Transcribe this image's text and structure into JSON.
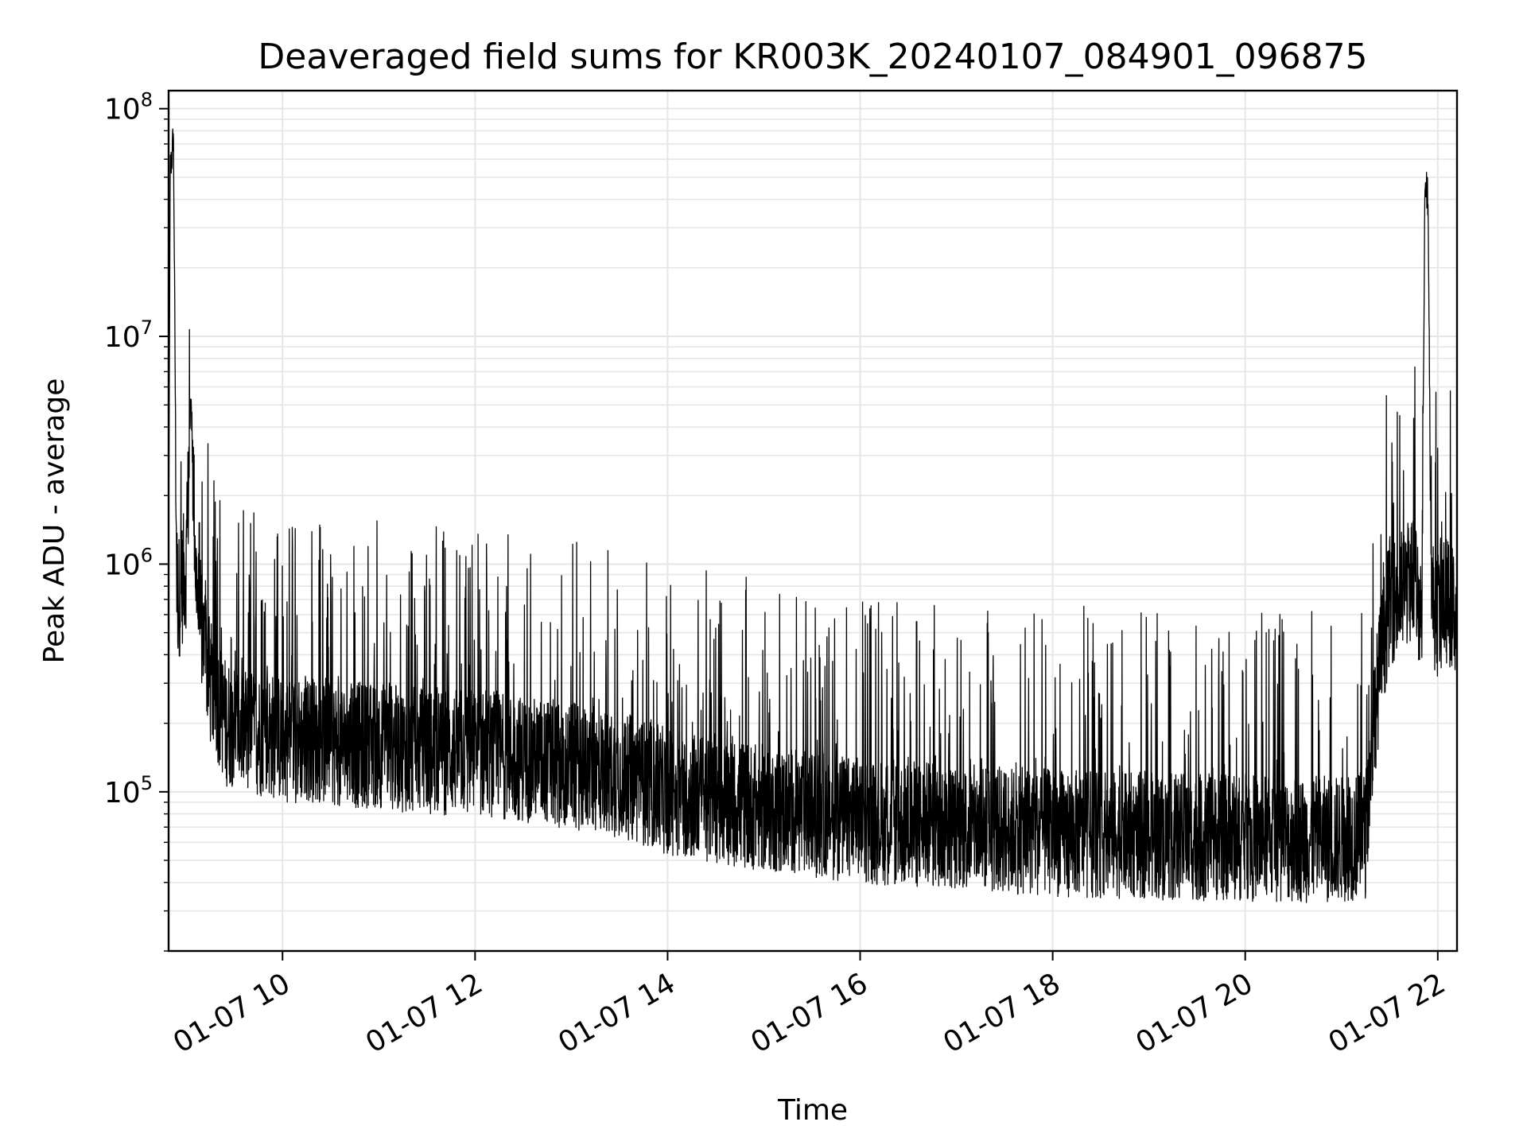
{
  "chart_data": {
    "type": "line",
    "title": "Deaveraged field sums for KR003K_20240107_084901_096875",
    "xlabel": "Time",
    "ylabel": "Peak ADU - average",
    "yscale": "log",
    "ylim": [
      20000,
      120000000
    ],
    "xlim": [
      "01-07 08:49",
      "01-07 22:12"
    ],
    "grid": true,
    "legend": "none",
    "line_color": "#000000",
    "x_ticks": [
      "01-07 10",
      "01-07 12",
      "01-07 14",
      "01-07 16",
      "01-07 18",
      "01-07 20",
      "01-07 22"
    ],
    "y_ticks": [
      {
        "base": "10",
        "exp": "5",
        "value": 100000
      },
      {
        "base": "10",
        "exp": "6",
        "value": 1000000
      },
      {
        "base": "10",
        "exp": "7",
        "value": 10000000
      },
      {
        "base": "10",
        "exp": "8",
        "value": 100000000
      }
    ],
    "series": [
      {
        "x": [
          "01-07 08:49",
          "01-07 08:50",
          "01-07 08:51",
          "01-07 08:52",
          "01-07 08:54",
          "01-07 08:55",
          "01-07 08:57",
          "01-07 09:00",
          "01-07 09:03",
          "01-07 09:06",
          "01-07 09:08",
          "01-07 09:10",
          "01-07 09:12",
          "01-07 09:15",
          "01-07 09:20",
          "01-07 09:25",
          "01-07 09:30",
          "01-07 09:40",
          "01-07 09:50",
          "01-07 10:00",
          "01-07 10:20",
          "01-07 10:40",
          "01-07 11:00",
          "01-07 11:30",
          "01-07 12:00",
          "01-07 12:30",
          "01-07 13:00",
          "01-07 13:30",
          "01-07 14:00",
          "01-07 14:20",
          "01-07 14:40",
          "01-07 15:00",
          "01-07 15:30",
          "01-07 16:00",
          "01-07 16:30",
          "01-07 17:00",
          "01-07 17:30",
          "01-07 18:00",
          "01-07 18:30",
          "01-07 19:00",
          "01-07 19:30",
          "01-07 20:00",
          "01-07 20:30",
          "01-07 21:00",
          "01-07 21:15",
          "01-07 21:20",
          "01-07 21:25",
          "01-07 21:30",
          "01-07 21:35",
          "01-07 21:40",
          "01-07 21:45",
          "01-07 21:50",
          "01-07 21:52",
          "01-07 21:54",
          "01-07 21:56",
          "01-07 21:58",
          "01-07 22:00",
          "01-07 22:05",
          "01-07 22:12"
        ],
        "y": [
          900000,
          55000000,
          60000000,
          80000000,
          900000,
          700000,
          800000,
          1000000,
          5500000,
          900000,
          600000,
          500000,
          400000,
          300000,
          250000,
          200000,
          200000,
          180000,
          180000,
          170000,
          170000,
          160000,
          160000,
          150000,
          150000,
          140000,
          130000,
          120000,
          100000,
          95000,
          90000,
          85000,
          80000,
          75000,
          72000,
          70000,
          68000,
          66000,
          65000,
          64000,
          63000,
          63000,
          62000,
          62000,
          65000,
          200000,
          400000,
          700000,
          700000,
          800000,
          900000,
          600000,
          50000000,
          40000000,
          700000,
          650000,
          600000,
          700000,
          600000
        ]
      }
    ]
  }
}
